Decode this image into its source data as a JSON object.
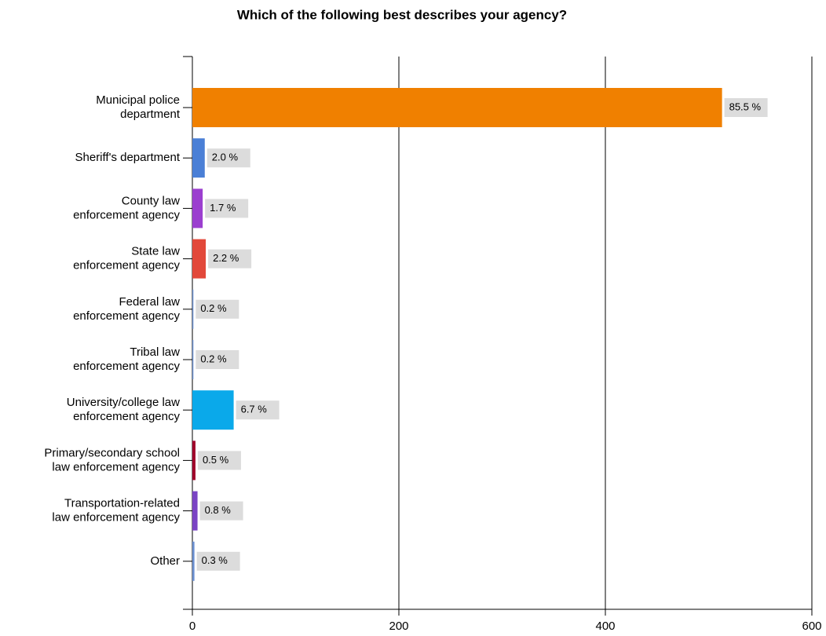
{
  "chart_data": {
    "type": "hbar",
    "title": "Which of the following best describes your agency?",
    "categories": [
      "Municipal police\ndepartment",
      "Sheriff's department",
      "County law\nenforcement agency",
      "State law\nenforcement agency",
      "Federal law\nenforcement agency",
      "Tribal law\nenforcement agency",
      "University/college law\nenforcement agency",
      "Primary/secondary school\nlaw enforcement agency",
      "Transportation-related\nlaw enforcement agency",
      "Other"
    ],
    "values": [
      513,
      12,
      10,
      13,
      1,
      1,
      40,
      3,
      5,
      2
    ],
    "value_labels": [
      "85.5 %",
      "2.0 %",
      "1.7 %",
      "2.2 %",
      "0.2 %",
      "0.2 %",
      "6.7 %",
      "0.5 %",
      "0.8 %",
      "0.3 %"
    ],
    "colors": [
      "#f08000",
      "#4a7fd6",
      "#9b3fcf",
      "#e2483a",
      "#6a8fd0",
      "#6a8fd0",
      "#0aa9ea",
      "#a0002a",
      "#7a44c4",
      "#6a8fd0"
    ],
    "xlim": [
      0,
      600
    ],
    "xticks": [
      0,
      200,
      400,
      600
    ],
    "grid": true
  }
}
